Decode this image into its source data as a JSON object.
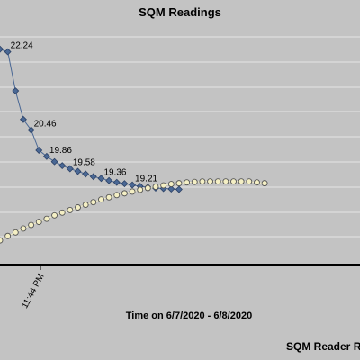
{
  "chart_data": {
    "type": "line",
    "title": "SQM Readings",
    "xlabel": "Time on 6/7/2020 - 6/8/2020",
    "footer": "SQM Reader R",
    "x_tick_labels": [
      "11:44 PM"
    ],
    "grid": true,
    "legend": "none",
    "series": [
      {
        "color": "#4a6895",
        "marker": "diamond",
        "values": [
          22.3,
          22.24,
          21.35,
          20.7,
          20.46,
          20.0,
          19.86,
          19.74,
          19.65,
          19.58,
          19.52,
          19.46,
          19.4,
          19.36,
          19.31,
          19.27,
          19.24,
          19.21,
          19.18,
          19.16,
          19.14,
          19.13,
          19.12,
          19.11
        ],
        "labels": [
          {
            "index": 1,
            "text": "22.24"
          },
          {
            "index": 4,
            "text": "20.46"
          },
          {
            "index": 6,
            "text": "19.86"
          },
          {
            "index": 9,
            "text": "19.58"
          },
          {
            "index": 13,
            "text": "19.36"
          },
          {
            "index": 17,
            "text": "19.21"
          }
        ]
      },
      {
        "color": "#f4efc4",
        "marker": "circle",
        "values": [
          17.95,
          18.05,
          18.13,
          18.22,
          18.3,
          18.37,
          18.44,
          18.52,
          18.58,
          18.64,
          18.7,
          18.76,
          18.82,
          18.88,
          18.93,
          18.98,
          19.02,
          19.06,
          19.1,
          19.14,
          19.17,
          19.2,
          19.23,
          19.25,
          19.27,
          19.28,
          19.29,
          19.29,
          19.29,
          19.29,
          19.29,
          19.29,
          19.29,
          19.27,
          19.25
        ]
      }
    ]
  }
}
